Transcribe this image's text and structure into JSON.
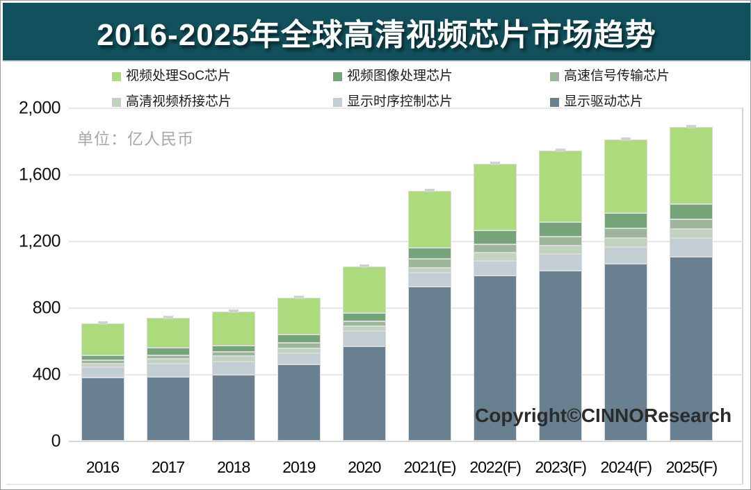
{
  "title": "2016-2025年全球高清视频芯片市场趋势",
  "unit_label": "单位：亿人民币",
  "copyright": "Copyright©CINNOResearch",
  "colors": {
    "banner": "#11505c",
    "title_text": "#ffffff",
    "bar_border": "#dadada",
    "error_cap": "#ccd6cf",
    "gridline": "#e7e7e7",
    "axis_line": "#d8d8d8",
    "unit_text": "#a8a8a8"
  },
  "chart_data": {
    "type": "bar",
    "stacked": true,
    "title": "2016-2025年全球高清视频芯片市场趋势",
    "unit": "亿人民币",
    "categories": [
      "2016",
      "2017",
      "2018",
      "2019",
      "2020",
      "2021(E)",
      "2022(F)",
      "2023(F)",
      "2024(F)",
      "2025(F)"
    ],
    "series_order": "bottom-to-top",
    "series": [
      {
        "name": "显示驱动芯片",
        "color": "#68808f",
        "values": [
          380,
          387,
          400,
          459,
          570,
          927,
          996,
          1024,
          1066,
          1107
        ]
      },
      {
        "name": "显示时序控制芯片",
        "color": "#c3ced4",
        "values": [
          65,
          79,
          76,
          69,
          90,
          83,
          87,
          101,
          99,
          111
        ]
      },
      {
        "name": "高清视频桥接芯片",
        "color": "#c1d2bf",
        "values": [
          18,
          29,
          35,
          28,
          32,
          30,
          48,
          48,
          56,
          58
        ]
      },
      {
        "name": "高速信号传输芯片",
        "color": "#9cb59b",
        "values": [
          22,
          21,
          25,
          36,
          28,
          53,
          52,
          56,
          59,
          55
        ]
      },
      {
        "name": "视频图像处理芯片",
        "color": "#74a478",
        "values": [
          32,
          44,
          38,
          47,
          51,
          67,
          83,
          86,
          90,
          95
        ]
      },
      {
        "name": "视频处理SoC芯片",
        "color": "#aeda7e",
        "values": [
          188,
          180,
          204,
          223,
          278,
          345,
          402,
          432,
          443,
          463
        ]
      }
    ],
    "totals": [
      705,
      740,
      778,
      862,
      1049,
      1505,
      1668,
      1747,
      1813,
      1889
    ],
    "ylim": [
      0,
      2000
    ],
    "yticks": [
      0,
      400,
      800,
      1200,
      1600,
      2000
    ],
    "ytick_labels": [
      "0",
      "400",
      "800",
      "1,200",
      "1,600",
      "2,000"
    ],
    "grid": true,
    "legend_position": "top",
    "legend_display_order": [
      "视频处理SoC芯片",
      "视频图像处理芯片",
      "高速信号传输芯片",
      "高清视频桥接芯片",
      "显示时序控制芯片",
      "显示驱动芯片"
    ],
    "error_caps_on_bar_tops": true
  }
}
